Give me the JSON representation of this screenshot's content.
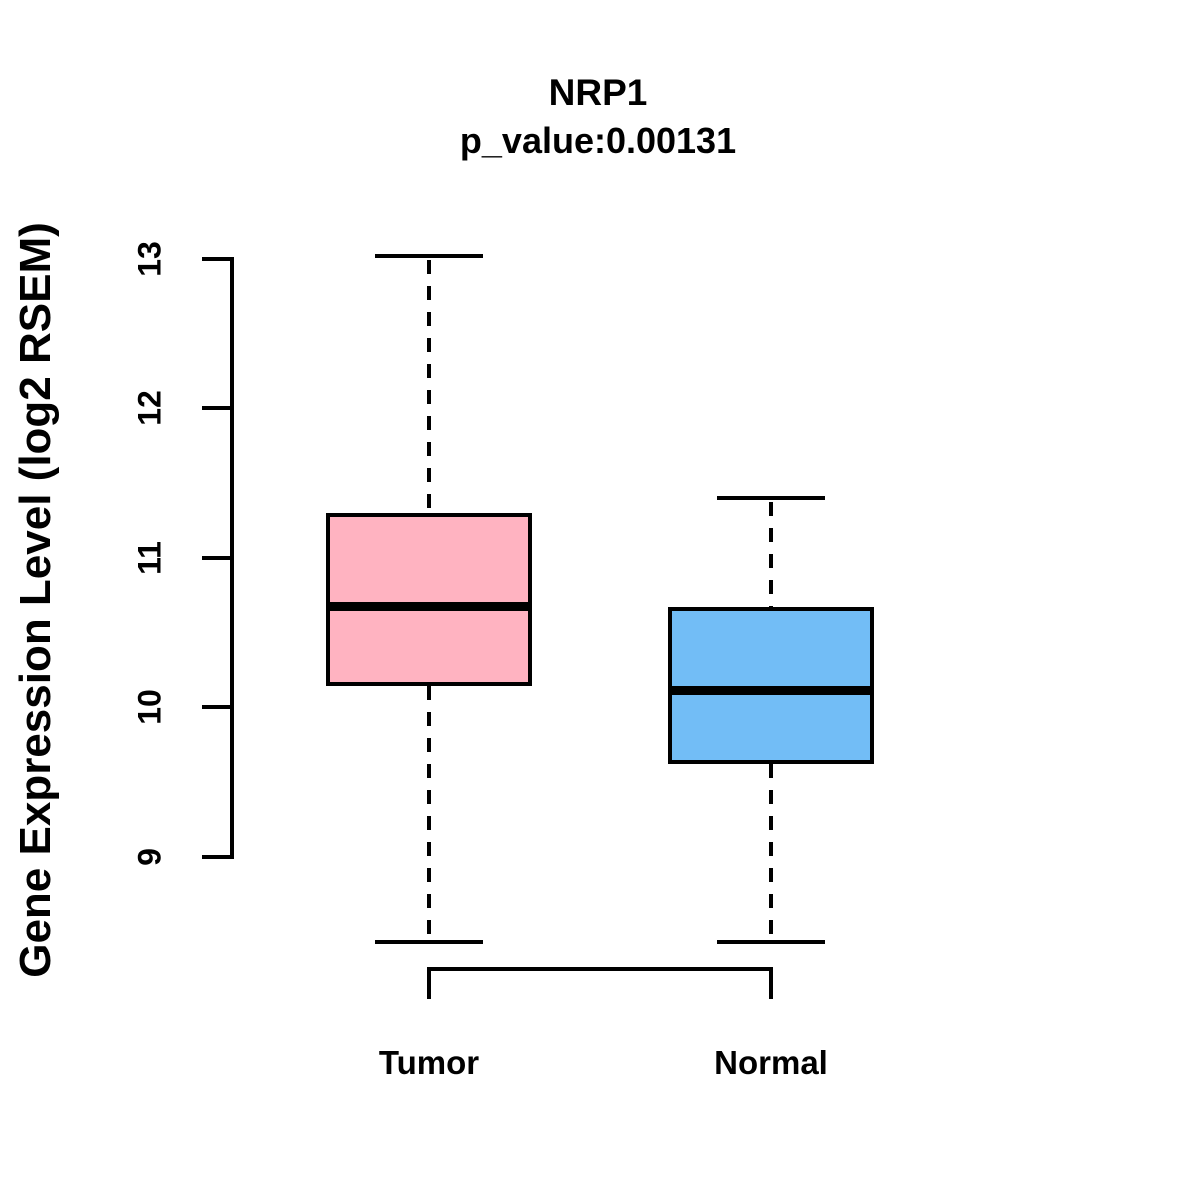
{
  "chart_data": {
    "type": "boxplot",
    "title": "NRP1",
    "subtitle": "p_value:0.00131",
    "ylabel": "Gene Expression Level (log2 RSEM)",
    "xlabel": "",
    "categories": [
      "Tumor",
      "Normal"
    ],
    "yticks": [
      "9",
      "10",
      "11",
      "12",
      "13"
    ],
    "ytick_values": [
      9,
      10,
      11,
      12,
      13
    ],
    "ylim": [
      8.2,
      13.25
    ],
    "grid": false,
    "legend_position": "none",
    "axis_color": "#000000",
    "series": [
      {
        "name": "Tumor",
        "fill_color": "#FFB3C1",
        "stroke_color": "#000000",
        "whisker_low": 8.43,
        "q1": 10.14,
        "median": 10.67,
        "q3": 11.3,
        "whisker_high": 13.02
      },
      {
        "name": "Normal",
        "fill_color": "#72BDF6",
        "stroke_color": "#000000",
        "whisker_low": 8.43,
        "q1": 9.62,
        "median": 10.11,
        "q3": 10.67,
        "whisker_high": 11.4
      }
    ]
  }
}
